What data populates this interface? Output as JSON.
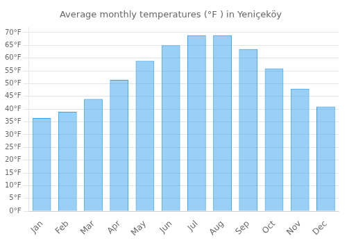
{
  "chart_data": {
    "type": "bar",
    "title": "Average monthly temperatures (°F ) in Yeniçeköy",
    "categories": [
      "Jan",
      "Feb",
      "Mar",
      "Apr",
      "May",
      "Jun",
      "Jul",
      "Aug",
      "Sep",
      "Oct",
      "Nov",
      "Dec"
    ],
    "values": [
      36.5,
      39.0,
      44.0,
      51.5,
      59.0,
      65.0,
      69.0,
      69.0,
      63.5,
      56.0,
      48.0,
      41.0
    ],
    "ylim": [
      0,
      72
    ],
    "yticks": [
      {
        "value": 0,
        "label": "0°F"
      },
      {
        "value": 5,
        "label": "5°F"
      },
      {
        "value": 10,
        "label": "10°F"
      },
      {
        "value": 15,
        "label": "15°F"
      },
      {
        "value": 20,
        "label": "20°F"
      },
      {
        "value": 25,
        "label": "25°F"
      },
      {
        "value": 30,
        "label": "30°F"
      },
      {
        "value": 35,
        "label": "35°F"
      },
      {
        "value": 40,
        "label": "40°F"
      },
      {
        "value": 45,
        "label": "45°F"
      },
      {
        "value": 50,
        "label": "50°F"
      },
      {
        "value": 55,
        "label": "55°F"
      },
      {
        "value": 60,
        "label": "60°F"
      },
      {
        "value": 65,
        "label": "65°F"
      },
      {
        "value": 70,
        "label": "70°F"
      }
    ],
    "grid": true
  }
}
